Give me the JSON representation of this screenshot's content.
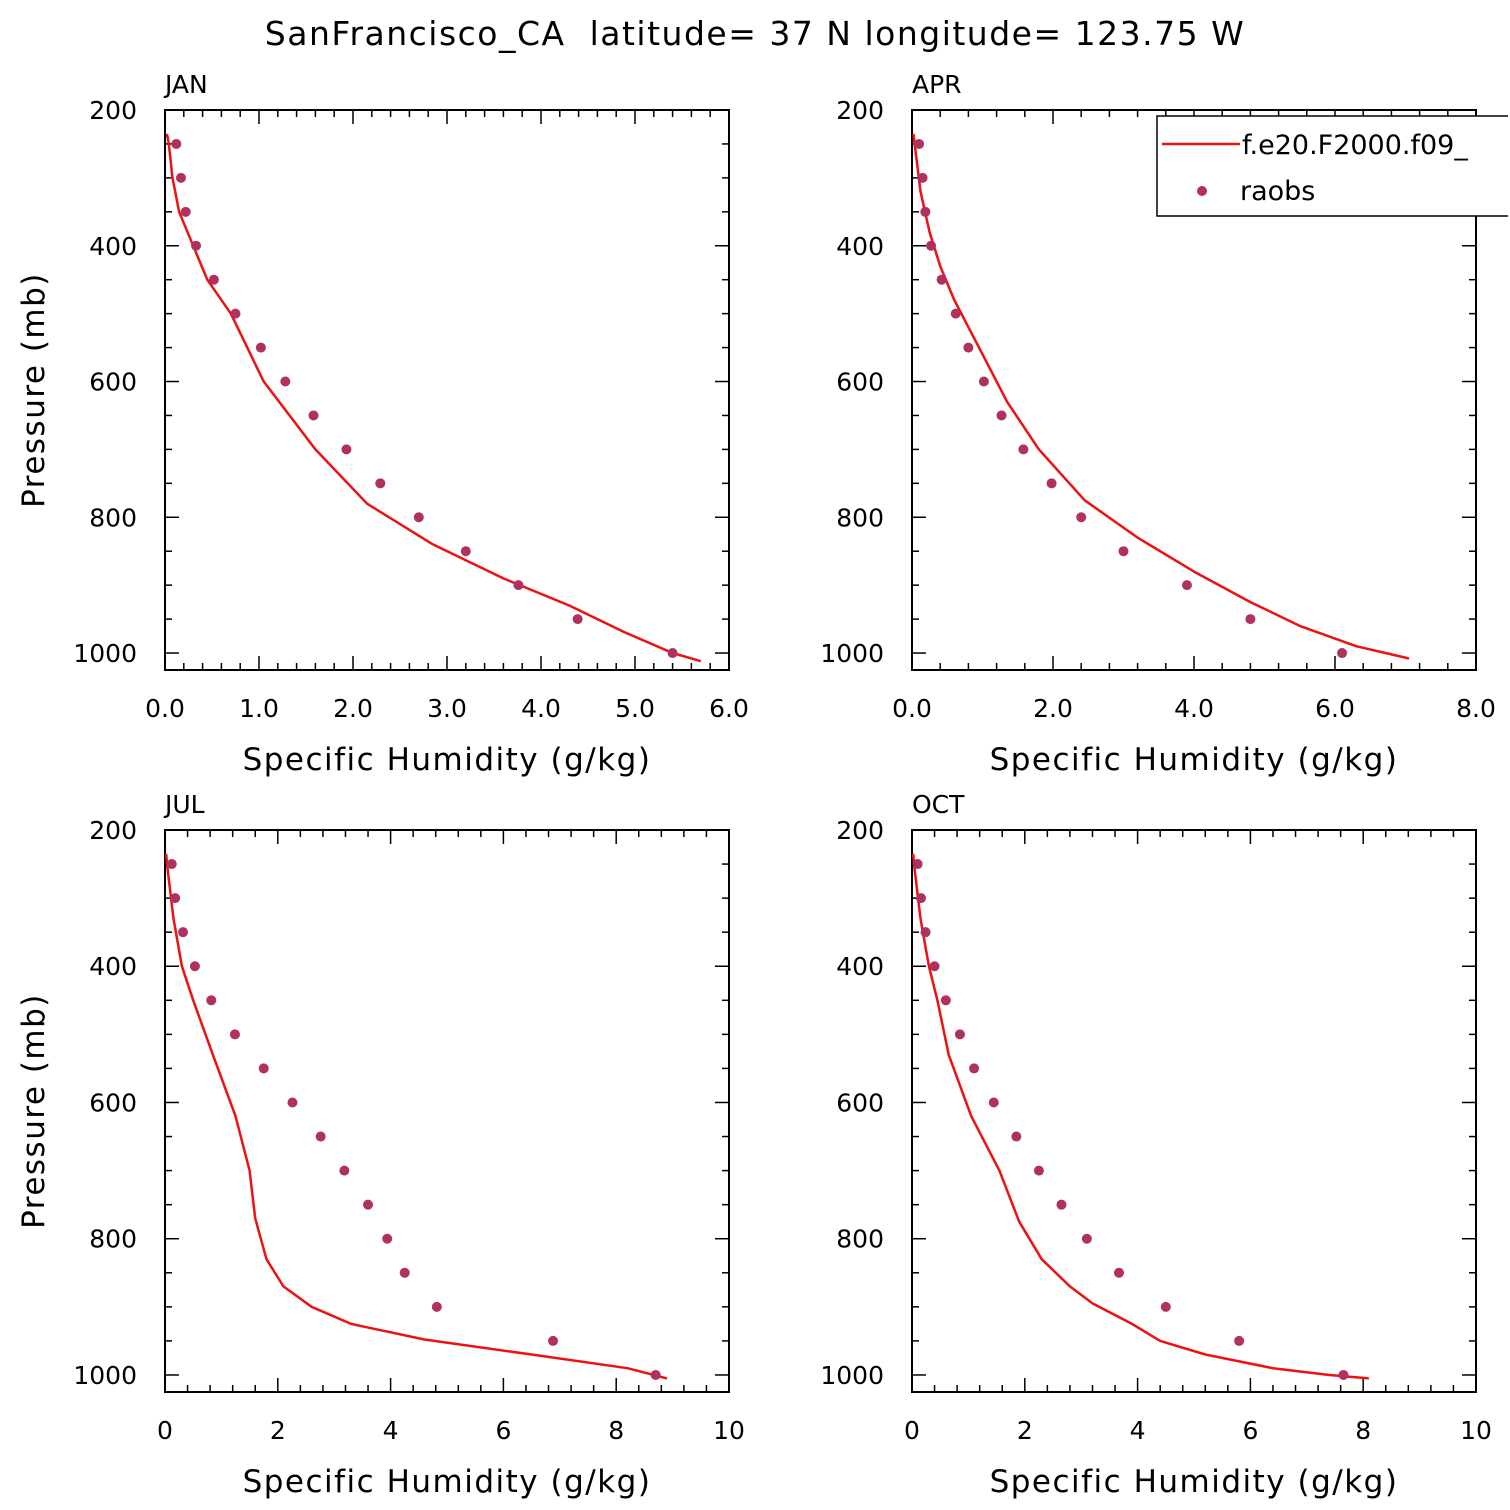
{
  "chart_data": {
    "type": "line",
    "title": "SanFrancisco_CA  latitude= 37 N longitude= 123.75 W",
    "legend": {
      "placement": "top-right",
      "entries": [
        {
          "label": "f.e20.F2000.f09_",
          "style": "line",
          "color": "#ee1111"
        },
        {
          "label": "raobs",
          "style": "marker",
          "color": "#b03060"
        }
      ]
    },
    "colors": {
      "model": "#ee1111",
      "raobs": "#b03060"
    },
    "panels": [
      {
        "label": "JAN",
        "xlabel": "Specific Humidity (g/kg)",
        "ylabel": "Pressure (mb)",
        "xlim": [
          0,
          6
        ],
        "ylim": [
          200,
          1025
        ],
        "y_reversed": true,
        "xticks": [
          "0.0",
          "1.0",
          "2.0",
          "3.0",
          "4.0",
          "5.0",
          "6.0"
        ],
        "yticks": [
          "200",
          "400",
          "600",
          "800",
          "1000"
        ],
        "series": [
          {
            "name": "f.e20.F2000.f09_",
            "kind": "line",
            "x": [
              0.02,
              0.04,
              0.08,
              0.15,
              0.3,
              0.45,
              0.7,
              1.05,
              1.6,
              2.15,
              2.85,
              3.6,
              4.3,
              4.9,
              5.4,
              5.7
            ],
            "y": [
              235,
              250,
              300,
              350,
              400,
              450,
              500,
              600,
              700,
              780,
              840,
              890,
              930,
              970,
              1000,
              1012
            ]
          },
          {
            "name": "raobs",
            "kind": "scatter",
            "x": [
              0.12,
              0.17,
              0.22,
              0.33,
              0.52,
              0.75,
              1.02,
              1.28,
              1.58,
              1.93,
              2.29,
              2.7,
              3.2,
              3.76,
              4.39,
              5.4
            ],
            "y": [
              250,
              300,
              350,
              400,
              450,
              500,
              550,
              600,
              650,
              700,
              750,
              800,
              850,
              900,
              950,
              1000
            ]
          }
        ]
      },
      {
        "label": "APR",
        "xlabel": "Specific Humidity (g/kg)",
        "ylabel": "",
        "xlim": [
          0,
          8
        ],
        "ylim": [
          200,
          1025
        ],
        "y_reversed": true,
        "xticks": [
          "0.0",
          "2.0",
          "4.0",
          "6.0",
          "8.0"
        ],
        "yticks": [
          "200",
          "400",
          "600",
          "800",
          "1000"
        ],
        "series": [
          {
            "name": "f.e20.F2000.f09_",
            "kind": "line",
            "x": [
              0.02,
              0.05,
              0.12,
              0.25,
              0.4,
              0.6,
              0.95,
              1.35,
              1.8,
              2.45,
              3.2,
              4.0,
              4.8,
              5.5,
              6.3,
              7.05
            ],
            "y": [
              235,
              260,
              320,
              380,
              430,
              480,
              550,
              630,
              700,
              775,
              830,
              880,
              925,
              960,
              990,
              1008
            ]
          },
          {
            "name": "raobs",
            "kind": "scatter",
            "x": [
              0.1,
              0.15,
              0.19,
              0.27,
              0.42,
              0.62,
              0.8,
              1.02,
              1.27,
              1.58,
              1.98,
              2.4,
              3.0,
              3.9,
              4.8,
              6.1
            ],
            "y": [
              250,
              300,
              350,
              400,
              450,
              500,
              550,
              600,
              650,
              700,
              750,
              800,
              850,
              900,
              950,
              1000
            ]
          }
        ]
      },
      {
        "label": "JUL",
        "xlabel": "Specific Humidity (g/kg)",
        "ylabel": "Pressure (mb)",
        "xlim": [
          0,
          10
        ],
        "ylim": [
          200,
          1025
        ],
        "y_reversed": true,
        "xticks": [
          "0",
          "2",
          "4",
          "6",
          "8",
          "10"
        ],
        "yticks": [
          "200",
          "400",
          "600",
          "800",
          "1000"
        ],
        "series": [
          {
            "name": "f.e20.F2000.f09_",
            "kind": "line",
            "x": [
              0.02,
              0.05,
              0.15,
              0.3,
              0.5,
              0.85,
              1.25,
              1.5,
              1.6,
              1.8,
              2.1,
              2.6,
              3.3,
              4.6,
              6.5,
              8.2,
              8.9
            ],
            "y": [
              235,
              260,
              330,
              400,
              450,
              530,
              620,
              700,
              770,
              830,
              870,
              900,
              925,
              948,
              970,
              990,
              1005
            ]
          },
          {
            "name": "raobs",
            "kind": "scatter",
            "x": [
              0.12,
              0.18,
              0.32,
              0.53,
              0.82,
              1.24,
              1.75,
              2.26,
              2.76,
              3.18,
              3.6,
              3.94,
              4.25,
              4.82,
              6.88,
              8.7
            ],
            "y": [
              250,
              300,
              350,
              400,
              450,
              500,
              550,
              600,
              650,
              700,
              750,
              800,
              850,
              900,
              950,
              1000
            ]
          }
        ]
      },
      {
        "label": "OCT",
        "xlabel": "Specific Humidity (g/kg)",
        "ylabel": "",
        "xlim": [
          0,
          10
        ],
        "ylim": [
          200,
          1025
        ],
        "y_reversed": true,
        "xticks": [
          "0",
          "2",
          "4",
          "6",
          "8",
          "10"
        ],
        "yticks": [
          "200",
          "400",
          "600",
          "800",
          "1000"
        ],
        "series": [
          {
            "name": "f.e20.F2000.f09_",
            "kind": "line",
            "x": [
              0.02,
              0.05,
              0.15,
              0.3,
              0.45,
              0.65,
              1.05,
              1.55,
              1.9,
              2.3,
              2.8,
              3.2,
              3.9,
              4.4,
              5.2,
              6.4,
              7.4,
              8.1
            ],
            "y": [
              235,
              260,
              330,
              400,
              450,
              530,
              620,
              700,
              775,
              830,
              870,
              895,
              925,
              950,
              970,
              990,
              1000,
              1005
            ]
          },
          {
            "name": "raobs",
            "kind": "scatter",
            "x": [
              0.1,
              0.16,
              0.24,
              0.4,
              0.6,
              0.85,
              1.1,
              1.45,
              1.85,
              2.25,
              2.65,
              3.1,
              3.67,
              4.5,
              5.8,
              7.65
            ],
            "y": [
              250,
              300,
              350,
              400,
              450,
              500,
              550,
              600,
              650,
              700,
              750,
              800,
              850,
              900,
              950,
              1000
            ]
          }
        ]
      }
    ]
  }
}
